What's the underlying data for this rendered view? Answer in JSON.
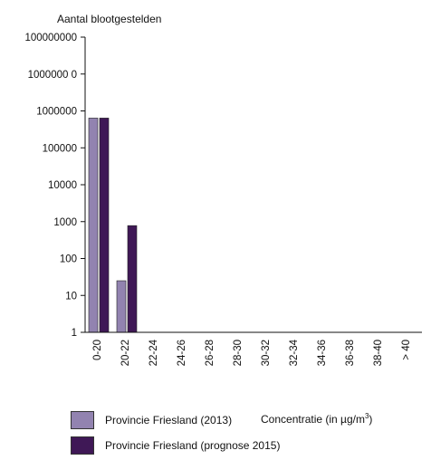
{
  "chart_data": {
    "type": "bar",
    "ylabel": "Aantal blootgestelden",
    "xlabel": "Concentratie (in µg/m",
    "xlabel_sup": "3",
    "xlabel_close": ")",
    "y_scale": "log",
    "ylim": [
      1,
      100000000
    ],
    "y_tick_values": [
      1,
      10,
      100,
      1000,
      10000,
      100000,
      1000000,
      10000000,
      100000000
    ],
    "y_tick_labels": [
      "1",
      "10",
      "100",
      "1000",
      "10000",
      "100000",
      "1000000",
      "1000000 0",
      "100000000"
    ],
    "categories": [
      "0-20",
      "20-22",
      "22-24",
      "24-26",
      "26-28",
      "28-30",
      "30-32",
      "32-34",
      "34-36",
      "36-38",
      "38-40",
      "> 40"
    ],
    "series": [
      {
        "name": "Provincie Friesland (2013)",
        "color": "#9283b0",
        "values": [
          640000,
          25,
          0,
          0,
          0,
          0,
          0,
          0,
          0,
          0,
          0,
          0
        ]
      },
      {
        "name": "Provincie Friesland (prognose 2015)",
        "color": "#3f1856",
        "values": [
          640000,
          780,
          0,
          0,
          0,
          0,
          0,
          0,
          0,
          0,
          0,
          0
        ]
      }
    ],
    "legend_position": "bottom-left",
    "grid": false
  }
}
